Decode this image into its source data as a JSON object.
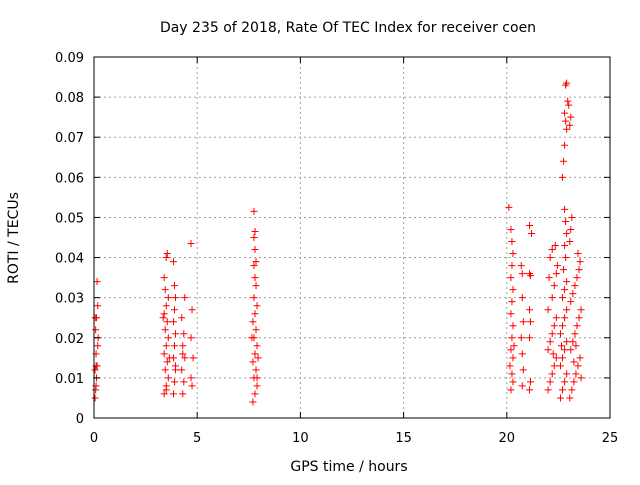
{
  "chart_data": {
    "type": "scatter",
    "title": "Day 235 of 2018, Rate Of TEC Index for receiver coen",
    "xlabel": "GPS time / hours",
    "ylabel": "ROTI / TECUs",
    "xlim": [
      0,
      25
    ],
    "ylim": [
      0,
      0.09
    ],
    "xticks": [
      "0",
      "5",
      "10",
      "15",
      "20",
      "25"
    ],
    "yticks": [
      "0",
      "0.01",
      "0.02",
      "0.03",
      "0.04",
      "0.05",
      "0.06",
      "0.07",
      "0.08",
      "0.09"
    ],
    "grid": true,
    "legend": "none",
    "marker": "plus",
    "color": "#ff0000",
    "clusters": [
      {
        "x_range": [
          0.0,
          0.2
        ],
        "points": [
          [
            0.05,
            0.005
          ],
          [
            0.08,
            0.007
          ],
          [
            0.1,
            0.008
          ],
          [
            0.12,
            0.01
          ],
          [
            0.05,
            0.012
          ],
          [
            0.15,
            0.013
          ],
          [
            0.1,
            0.016
          ],
          [
            0.18,
            0.018
          ],
          [
            0.2,
            0.02
          ],
          [
            0.08,
            0.022
          ],
          [
            0.12,
            0.025
          ],
          [
            0.18,
            0.028
          ],
          [
            0.15,
            0.034
          ],
          [
            0.1,
            0.013
          ],
          [
            0.06,
            0.025
          ]
        ]
      },
      {
        "x_range": [
          3.3,
          3.7
        ],
        "points": [
          [
            3.4,
            0.006
          ],
          [
            3.5,
            0.008
          ],
          [
            3.6,
            0.01
          ],
          [
            3.45,
            0.012
          ],
          [
            3.55,
            0.014
          ],
          [
            3.4,
            0.016
          ],
          [
            3.5,
            0.018
          ],
          [
            3.6,
            0.02
          ],
          [
            3.45,
            0.022
          ],
          [
            3.55,
            0.024
          ],
          [
            3.4,
            0.026
          ],
          [
            3.5,
            0.028
          ],
          [
            3.6,
            0.03
          ],
          [
            3.45,
            0.032
          ],
          [
            3.4,
            0.035
          ],
          [
            3.5,
            0.04
          ],
          [
            3.55,
            0.041
          ],
          [
            3.35,
            0.025
          ],
          [
            3.65,
            0.015
          ],
          [
            3.5,
            0.007
          ]
        ]
      },
      {
        "x_range": [
          3.8,
          4.0
        ],
        "points": [
          [
            3.85,
            0.006
          ],
          [
            3.9,
            0.009
          ],
          [
            3.95,
            0.012
          ],
          [
            3.85,
            0.015
          ],
          [
            3.9,
            0.018
          ],
          [
            3.95,
            0.021
          ],
          [
            3.85,
            0.024
          ],
          [
            3.9,
            0.027
          ],
          [
            3.95,
            0.03
          ],
          [
            3.9,
            0.033
          ],
          [
            3.85,
            0.039
          ],
          [
            3.95,
            0.013
          ]
        ]
      },
      {
        "x_range": [
          4.2,
          4.5
        ],
        "points": [
          [
            4.3,
            0.006
          ],
          [
            4.35,
            0.009
          ],
          [
            4.25,
            0.012
          ],
          [
            4.4,
            0.015
          ],
          [
            4.3,
            0.018
          ],
          [
            4.35,
            0.021
          ],
          [
            4.25,
            0.025
          ],
          [
            4.4,
            0.03
          ],
          [
            4.3,
            0.016
          ]
        ]
      },
      {
        "x_range": [
          4.6,
          4.8
        ],
        "points": [
          [
            4.7,
            0.0435
          ],
          [
            4.75,
            0.027
          ],
          [
            4.7,
            0.02
          ],
          [
            4.8,
            0.015
          ],
          [
            4.7,
            0.01
          ],
          [
            4.75,
            0.008
          ]
        ]
      },
      {
        "x_range": [
          7.6,
          8.0
        ],
        "points": [
          [
            7.7,
            0.004
          ],
          [
            7.8,
            0.006
          ],
          [
            7.9,
            0.008
          ],
          [
            7.75,
            0.01
          ],
          [
            7.85,
            0.012
          ],
          [
            7.7,
            0.014
          ],
          [
            7.8,
            0.016
          ],
          [
            7.9,
            0.018
          ],
          [
            7.75,
            0.02
          ],
          [
            7.85,
            0.022
          ],
          [
            7.7,
            0.024
          ],
          [
            7.8,
            0.026
          ],
          [
            7.9,
            0.028
          ],
          [
            7.75,
            0.03
          ],
          [
            7.85,
            0.033
          ],
          [
            7.8,
            0.035
          ],
          [
            7.75,
            0.038
          ],
          [
            7.85,
            0.039
          ],
          [
            7.8,
            0.042
          ],
          [
            7.75,
            0.045
          ],
          [
            7.8,
            0.0465
          ],
          [
            7.75,
            0.0515
          ],
          [
            7.95,
            0.015
          ],
          [
            7.65,
            0.02
          ],
          [
            7.9,
            0.01
          ]
        ]
      },
      {
        "x_range": [
          20.1,
          20.4
        ],
        "points": [
          [
            20.2,
            0.007
          ],
          [
            20.3,
            0.009
          ],
          [
            20.25,
            0.011
          ],
          [
            20.15,
            0.013
          ],
          [
            20.3,
            0.015
          ],
          [
            20.2,
            0.017
          ],
          [
            20.25,
            0.02
          ],
          [
            20.3,
            0.023
          ],
          [
            20.2,
            0.026
          ],
          [
            20.25,
            0.029
          ],
          [
            20.3,
            0.032
          ],
          [
            20.2,
            0.035
          ],
          [
            20.25,
            0.038
          ],
          [
            20.3,
            0.041
          ],
          [
            20.25,
            0.044
          ],
          [
            20.2,
            0.047
          ],
          [
            20.1,
            0.0525
          ],
          [
            20.35,
            0.018
          ]
        ]
      },
      {
        "x_range": [
          20.7,
          20.8
        ],
        "points": [
          [
            20.75,
            0.008
          ],
          [
            20.8,
            0.012
          ],
          [
            20.75,
            0.016
          ],
          [
            20.7,
            0.02
          ],
          [
            20.8,
            0.024
          ],
          [
            20.75,
            0.03
          ],
          [
            20.75,
            0.036
          ],
          [
            20.7,
            0.038
          ]
        ]
      },
      {
        "x_range": [
          21.0,
          21.2
        ],
        "points": [
          [
            21.1,
            0.007
          ],
          [
            21.15,
            0.009
          ],
          [
            21.1,
            0.02
          ],
          [
            21.15,
            0.024
          ],
          [
            21.1,
            0.027
          ],
          [
            21.15,
            0.0355
          ],
          [
            21.1,
            0.036
          ],
          [
            21.2,
            0.046
          ],
          [
            21.1,
            0.048
          ]
        ]
      },
      {
        "x_range": [
          21.9,
          22.5
        ],
        "points": [
          [
            22.0,
            0.007
          ],
          [
            22.1,
            0.009
          ],
          [
            22.2,
            0.011
          ],
          [
            22.3,
            0.013
          ],
          [
            22.4,
            0.015
          ],
          [
            22.0,
            0.017
          ],
          [
            22.1,
            0.019
          ],
          [
            22.2,
            0.021
          ],
          [
            22.3,
            0.023
          ],
          [
            22.4,
            0.025
          ],
          [
            22.0,
            0.027
          ],
          [
            22.2,
            0.03
          ],
          [
            22.3,
            0.033
          ],
          [
            22.4,
            0.036
          ],
          [
            22.1,
            0.04
          ],
          [
            22.2,
            0.042
          ],
          [
            22.35,
            0.043
          ],
          [
            22.45,
            0.038
          ],
          [
            22.05,
            0.035
          ],
          [
            22.25,
            0.016
          ]
        ]
      },
      {
        "x_range": [
          22.5,
          23.0
        ],
        "points": [
          [
            22.6,
            0.005
          ],
          [
            22.7,
            0.007
          ],
          [
            22.8,
            0.009
          ],
          [
            22.9,
            0.011
          ],
          [
            22.6,
            0.013
          ],
          [
            22.7,
            0.015
          ],
          [
            22.8,
            0.017
          ],
          [
            22.9,
            0.019
          ],
          [
            22.6,
            0.021
          ],
          [
            22.7,
            0.023
          ],
          [
            22.8,
            0.025
          ],
          [
            22.9,
            0.027
          ],
          [
            22.7,
            0.03
          ],
          [
            22.8,
            0.032
          ],
          [
            22.9,
            0.034
          ],
          [
            22.75,
            0.037
          ],
          [
            22.85,
            0.04
          ],
          [
            22.8,
            0.043
          ],
          [
            22.9,
            0.046
          ],
          [
            22.85,
            0.049
          ],
          [
            22.8,
            0.052
          ],
          [
            22.7,
            0.06
          ],
          [
            22.75,
            0.064
          ],
          [
            22.8,
            0.068
          ],
          [
            22.9,
            0.072
          ],
          [
            22.85,
            0.074
          ],
          [
            22.8,
            0.076
          ],
          [
            22.95,
            0.079
          ],
          [
            22.85,
            0.083
          ],
          [
            22.9,
            0.0835
          ],
          [
            22.65,
            0.018
          ]
        ]
      },
      {
        "x_range": [
          23.0,
          23.7
        ],
        "points": [
          [
            23.05,
            0.005
          ],
          [
            23.15,
            0.007
          ],
          [
            23.25,
            0.009
          ],
          [
            23.35,
            0.011
          ],
          [
            23.45,
            0.013
          ],
          [
            23.55,
            0.015
          ],
          [
            23.1,
            0.017
          ],
          [
            23.2,
            0.019
          ],
          [
            23.3,
            0.021
          ],
          [
            23.4,
            0.023
          ],
          [
            23.5,
            0.025
          ],
          [
            23.6,
            0.027
          ],
          [
            23.1,
            0.029
          ],
          [
            23.2,
            0.031
          ],
          [
            23.3,
            0.033
          ],
          [
            23.4,
            0.035
          ],
          [
            23.5,
            0.037
          ],
          [
            23.55,
            0.039
          ],
          [
            23.45,
            0.041
          ],
          [
            23.05,
            0.044
          ],
          [
            23.1,
            0.047
          ],
          [
            23.15,
            0.05
          ],
          [
            23.05,
            0.073
          ],
          [
            23.1,
            0.075
          ],
          [
            23.0,
            0.078
          ],
          [
            23.6,
            0.01
          ],
          [
            23.25,
            0.014
          ],
          [
            23.35,
            0.018
          ]
        ]
      }
    ]
  }
}
